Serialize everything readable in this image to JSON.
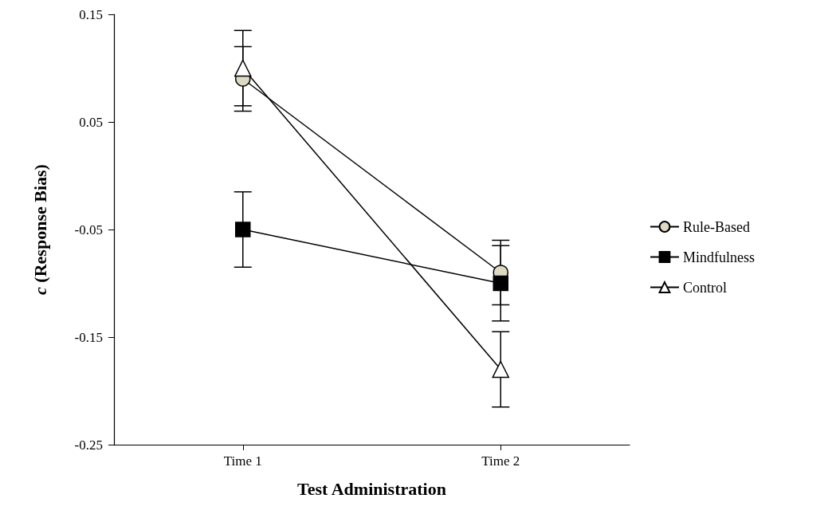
{
  "chart_data": {
    "type": "line",
    "xlabel": "Test Administration",
    "ylabel": "c (Response Bias)",
    "categories": [
      "Time 1",
      "Time 2"
    ],
    "ylim": [
      -0.25,
      0.15
    ],
    "yticks": [
      -0.25,
      -0.15,
      -0.05,
      0.05,
      0.15
    ],
    "series": [
      {
        "name": "Rule-Based",
        "color": "#ddd9c3",
        "marker": "circle",
        "values": [
          0.09,
          -0.09
        ],
        "errors": [
          0.03,
          0.03
        ]
      },
      {
        "name": "Mindfulness",
        "color": "#000000",
        "marker": "square",
        "values": [
          -0.05,
          -0.1
        ],
        "errors": [
          0.035,
          0.035
        ]
      },
      {
        "name": "Control",
        "color": "#ffffff",
        "marker": "triangle",
        "values": [
          0.1,
          -0.18
        ],
        "errors": [
          0.035,
          0.035
        ]
      }
    ],
    "grid": false,
    "legend": "right",
    "line_style": "solid"
  }
}
